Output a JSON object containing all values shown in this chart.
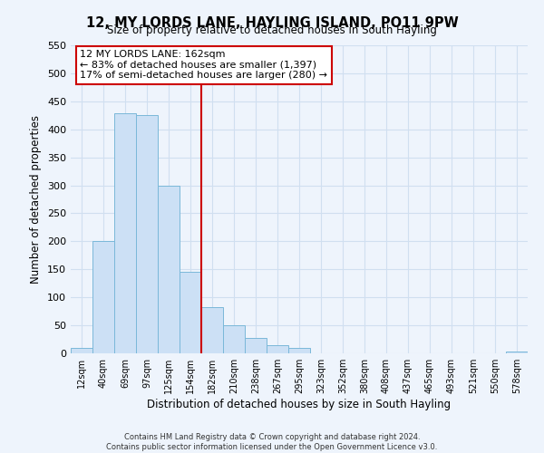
{
  "title": "12, MY LORDS LANE, HAYLING ISLAND, PO11 9PW",
  "subtitle": "Size of property relative to detached houses in South Hayling",
  "xlabel": "Distribution of detached houses by size in South Hayling",
  "ylabel": "Number of detached properties",
  "bin_labels": [
    "12sqm",
    "40sqm",
    "69sqm",
    "97sqm",
    "125sqm",
    "154sqm",
    "182sqm",
    "210sqm",
    "238sqm",
    "267sqm",
    "295sqm",
    "323sqm",
    "352sqm",
    "380sqm",
    "408sqm",
    "437sqm",
    "465sqm",
    "493sqm",
    "521sqm",
    "550sqm",
    "578sqm"
  ],
  "bar_heights": [
    10,
    200,
    428,
    425,
    300,
    145,
    83,
    50,
    27,
    14,
    9,
    0,
    0,
    0,
    0,
    0,
    0,
    0,
    0,
    0,
    3
  ],
  "bar_color": "#cce0f5",
  "bar_edge_color": "#7ab8d9",
  "vline_x": 5.5,
  "vline_color": "#cc0000",
  "ylim": [
    0,
    550
  ],
  "yticks": [
    0,
    50,
    100,
    150,
    200,
    250,
    300,
    350,
    400,
    450,
    500,
    550
  ],
  "annotation_title": "12 MY LORDS LANE: 162sqm",
  "annotation_line1": "← 83% of detached houses are smaller (1,397)",
  "annotation_line2": "17% of semi-detached houses are larger (280) →",
  "annotation_box_color": "#cc0000",
  "footer_line1": "Contains HM Land Registry data © Crown copyright and database right 2024.",
  "footer_line2": "Contains public sector information licensed under the Open Government Licence v3.0.",
  "grid_color": "#d0dff0",
  "background_color": "#eef4fc"
}
